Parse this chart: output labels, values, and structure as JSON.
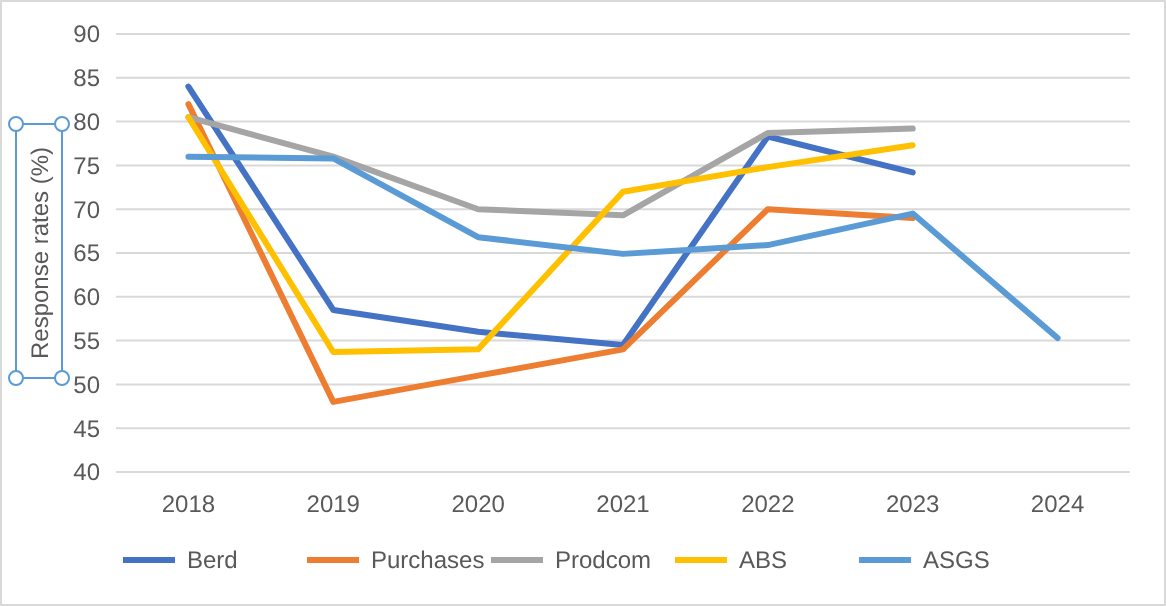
{
  "chart_data": {
    "type": "line",
    "ylabel": "Response rates (%)",
    "categories": [
      "2018",
      "2019",
      "2020",
      "2021",
      "2022",
      "2023",
      "2024"
    ],
    "series": [
      {
        "name": "Berd",
        "color": "#4472c4",
        "values": [
          84,
          58.5,
          56,
          54.5,
          78.3,
          74.2,
          null
        ]
      },
      {
        "name": "Purchases",
        "color": "#ed7d31",
        "values": [
          82,
          48,
          51,
          54,
          70,
          69,
          null
        ]
      },
      {
        "name": "Prodcom",
        "color": "#a5a5a5",
        "values": [
          80.5,
          76,
          70,
          69.3,
          78.7,
          79.2,
          null
        ]
      },
      {
        "name": "ABS",
        "color": "#ffc000",
        "values": [
          80.5,
          53.7,
          54,
          72,
          74.8,
          77.3,
          null
        ]
      },
      {
        "name": "ASGS",
        "color": "#5b9bd5",
        "values": [
          76,
          75.8,
          66.8,
          64.9,
          65.9,
          69.5,
          55.3
        ]
      }
    ],
    "ylim": [
      40,
      90
    ],
    "yticks": [
      40,
      45,
      50,
      55,
      60,
      65,
      70,
      75,
      80,
      85,
      90
    ],
    "grid": "y",
    "legend": "bottom",
    "line_style": "solid",
    "marker": "none"
  }
}
